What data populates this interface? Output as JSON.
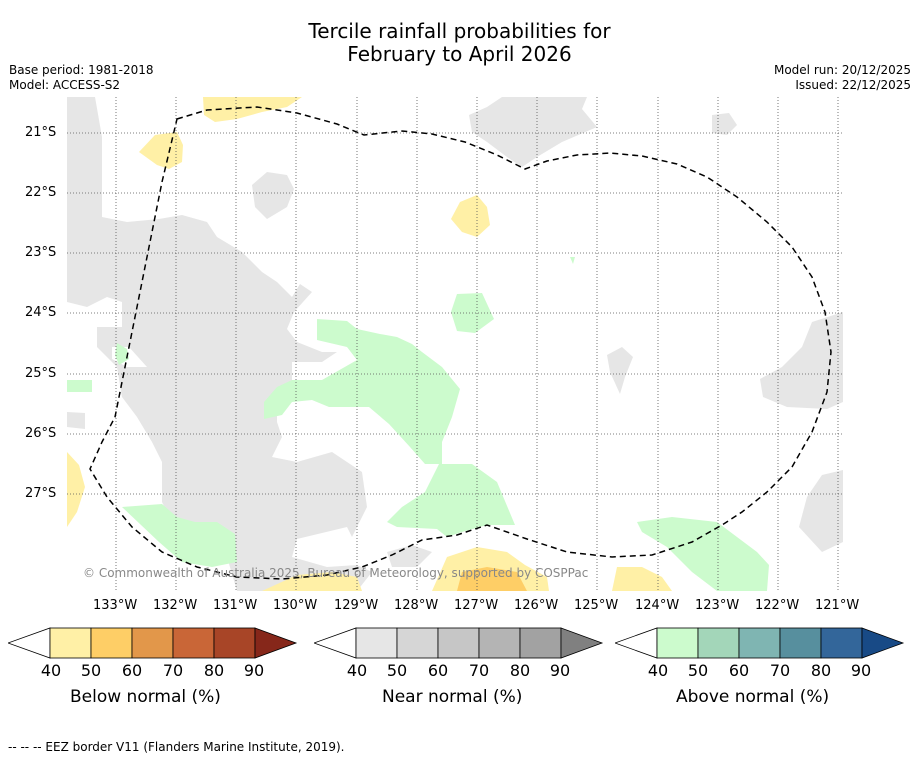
{
  "title": {
    "line1": "Tercile rainfall probabilities for",
    "line2": "February to April 2026"
  },
  "left_meta": {
    "base_period": "Base period: 1981-2018",
    "model": "Model: ACCESS-S2"
  },
  "right_meta": {
    "model_run": "Model run: 20/12/2025",
    "issued": "Issued: 22/12/2025"
  },
  "map": {
    "lat_labels": [
      "21°S",
      "22°S",
      "23°S",
      "24°S",
      "25°S",
      "26°S",
      "27°S"
    ],
    "lon_labels": [
      "133°W",
      "132°W",
      "131°W",
      "130°W",
      "129°W",
      "128°W",
      "127°W",
      "126°W",
      "125°W",
      "124°W",
      "123°W",
      "122°W",
      "121°W"
    ],
    "copyright": "© Commonwealth of Australia 2025, Bureau of Meteorology, supported by COSPPac"
  },
  "colorbars": {
    "below": {
      "label": "Below normal (%)",
      "ticks": [
        "40",
        "50",
        "60",
        "70",
        "80",
        "90"
      ],
      "colors": [
        "#fff0a6",
        "#fece66",
        "#e2974a",
        "#c96637",
        "#a84527",
        "#86271a"
      ]
    },
    "near": {
      "label": "Near normal (%)",
      "ticks": [
        "40",
        "50",
        "60",
        "70",
        "80",
        "90"
      ],
      "colors": [
        "#e6e6e6",
        "#d6d6d6",
        "#c6c6c6",
        "#b4b4b4",
        "#a2a2a2",
        "#808080"
      ]
    },
    "above": {
      "label": "Above normal (%)",
      "ticks": [
        "40",
        "50",
        "60",
        "70",
        "80",
        "90"
      ],
      "colors": [
        "#ccfbcd",
        "#a3d6b9",
        "#7fb5b2",
        "#578f9e",
        "#33669a",
        "#184a86"
      ]
    }
  },
  "footnote": "--  --  -- EEZ border V11 (Flanders Marine Institute, 2019)."
}
